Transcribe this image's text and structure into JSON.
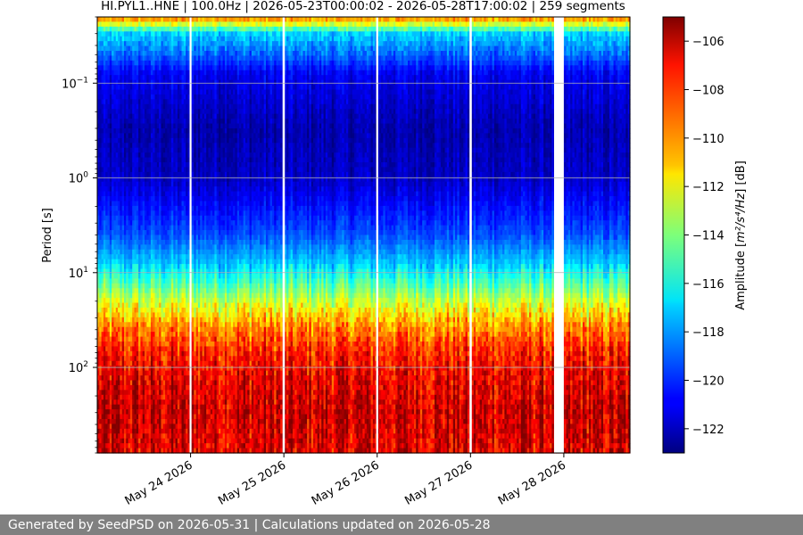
{
  "chart_data": {
    "type": "heatmap",
    "title": "HI.PYL1..HNE | 100.0Hz | 2026-05-23T00:00:02 - 2026-05-28T17:00:02 | 259 segments",
    "xlabel": "",
    "ylabel": "Period [s]",
    "y_scale": "log",
    "y_inverted": true,
    "ylim": [
      0.02,
      800
    ],
    "y_ticks": [
      {
        "value": 0.1,
        "base": "10",
        "exp": "−1"
      },
      {
        "value": 1,
        "base": "10",
        "exp": "0"
      },
      {
        "value": 10,
        "base": "10",
        "exp": "1"
      },
      {
        "value": 100,
        "base": "10",
        "exp": "2"
      }
    ],
    "x_range": [
      "2026-05-23T00:00:02",
      "2026-05-28T17:00:02"
    ],
    "x_ticks": [
      {
        "value": "2026-05-24",
        "label": "May 24 2026"
      },
      {
        "value": "2026-05-25",
        "label": "May 25 2026"
      },
      {
        "value": "2026-05-26",
        "label": "May 26 2026"
      },
      {
        "value": "2026-05-27",
        "label": "May 27 2026"
      },
      {
        "value": "2026-05-28",
        "label": "May 28 2026"
      }
    ],
    "grid": "horizontal at decades",
    "data_gaps": [
      {
        "start": "2026-05-23T23:45:00",
        "end": "2026-05-24T00:15:00"
      },
      {
        "start": "2026-05-24T23:40:00",
        "end": "2026-05-25T00:15:00"
      },
      {
        "start": "2026-05-25T23:45:00",
        "end": "2026-05-26T00:15:00"
      },
      {
        "start": "2026-05-26T23:45:00",
        "end": "2026-05-27T00:20:00"
      },
      {
        "start": "2026-05-27T21:30:00",
        "end": "2026-05-28T00:00:00"
      }
    ],
    "segments": 259,
    "colorbar": {
      "label_main": "Amplitude [",
      "label_unit_html": "m²/s⁴/Hz",
      "label_tail": "] [dB]",
      "colormap": "jet",
      "range": [
        -123,
        -105
      ],
      "ticks": [
        "−106",
        "−108",
        "−110",
        "−112",
        "−114",
        "−116",
        "−118",
        "−120",
        "−122"
      ],
      "tick_values": [
        -106,
        -108,
        -110,
        -112,
        -114,
        -116,
        -118,
        -120,
        -122
      ]
    },
    "profile_db_by_period": [
      {
        "period": 0.02,
        "db": -109
      },
      {
        "period": 0.03,
        "db": -117
      },
      {
        "period": 0.05,
        "db": -119
      },
      {
        "period": 0.08,
        "db": -121
      },
      {
        "period": 0.3,
        "db": -122.2
      },
      {
        "period": 1.0,
        "db": -121.8
      },
      {
        "period": 2.0,
        "db": -120.6
      },
      {
        "period": 4.0,
        "db": -119.4
      },
      {
        "period": 8.0,
        "db": -117.2
      },
      {
        "period": 15.0,
        "db": -114.2
      },
      {
        "period": 25.0,
        "db": -111.6
      },
      {
        "period": 40.0,
        "db": -109.4
      },
      {
        "period": 70.0,
        "db": -107.8
      },
      {
        "period": 120.0,
        "db": -107.0
      },
      {
        "period": 300.0,
        "db": -106.3
      },
      {
        "period": 800.0,
        "db": -106.8
      }
    ]
  },
  "footer": {
    "text": "Generated by SeedPSD on 2026-05-31 | Calculations updated on 2026-05-28"
  }
}
